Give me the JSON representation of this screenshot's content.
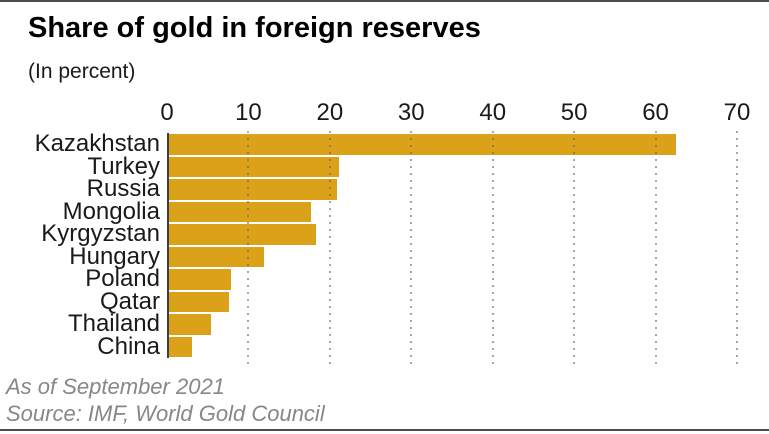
{
  "chart_data": {
    "type": "bar",
    "orientation": "horizontal",
    "title": "Share of gold in foreign reserves",
    "subtitle": "(In percent)",
    "categories": [
      "Kazakhstan",
      "Turkey",
      "Russia",
      "Mongolia",
      "Kyrgyzstan",
      "Hungary",
      "Poland",
      "Qatar",
      "Thailand",
      "China"
    ],
    "values": [
      62.5,
      21.1,
      20.9,
      17.7,
      18.3,
      11.9,
      7.8,
      7.6,
      5.4,
      3.1
    ],
    "xlabel": "",
    "ylabel": "",
    "xlim": [
      0,
      70
    ],
    "xticks": [
      0,
      10,
      20,
      30,
      40,
      50,
      60,
      70
    ],
    "grid": "dotted-vertical",
    "legend": "none",
    "bar_color": "#DBA118",
    "footnote": "As of September 2021",
    "source": "Source: IMF, World Gold Council"
  }
}
